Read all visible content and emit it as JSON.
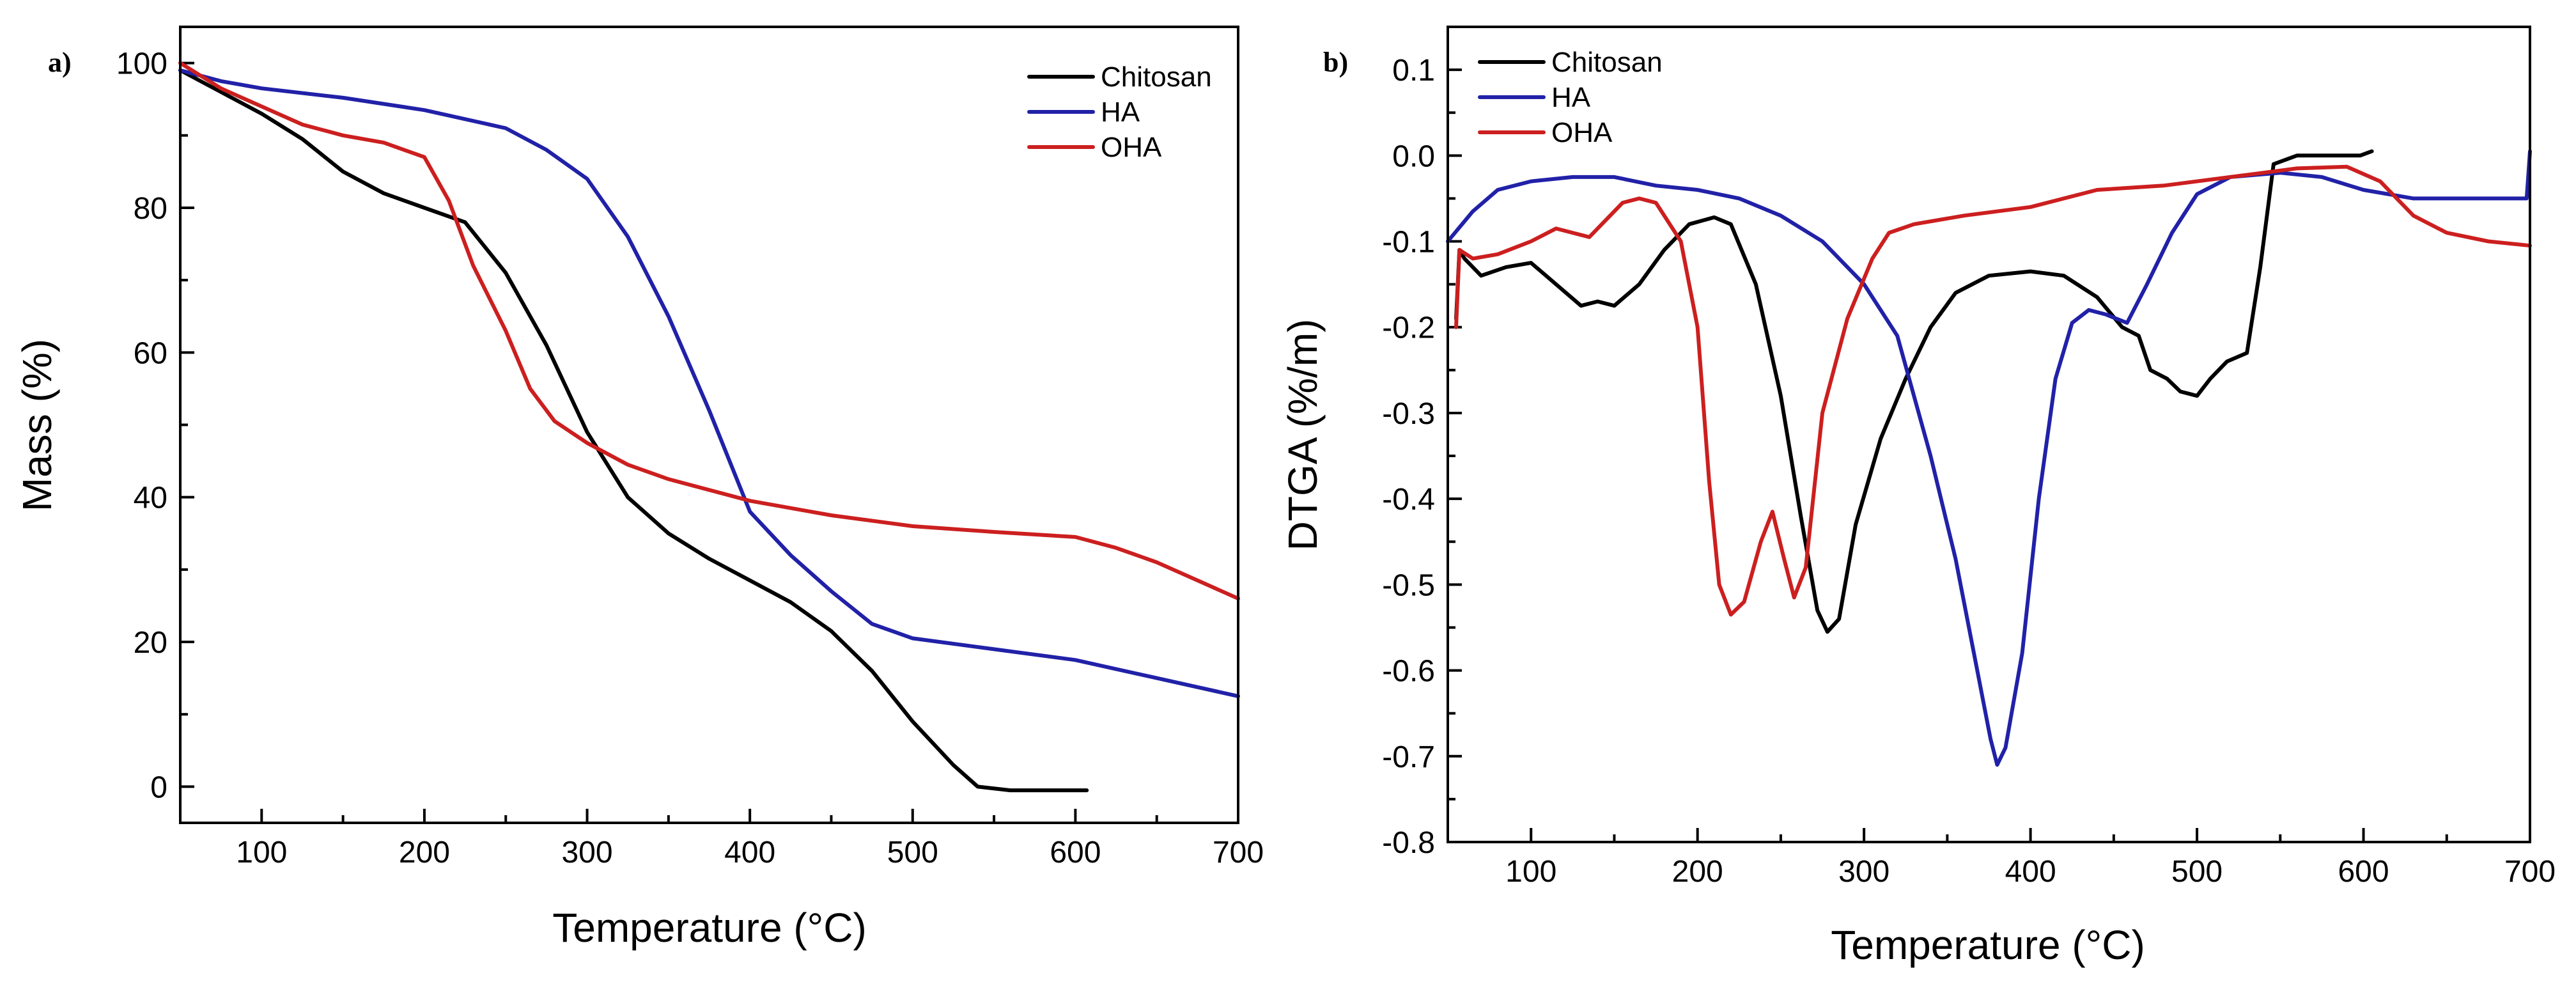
{
  "chart_data": [
    {
      "panel_label": "a)",
      "type": "line",
      "xlabel": "Temperature (°C)",
      "ylabel": "Mass (%)",
      "xlim": [
        50,
        700
      ],
      "ylim": [
        -5,
        105
      ],
      "xticks": [
        100,
        200,
        300,
        400,
        500,
        600,
        700
      ],
      "xtick_labels": [
        "100",
        "200",
        "300",
        "400",
        "500",
        "600",
        "700"
      ],
      "yticks": [
        0,
        20,
        40,
        60,
        80,
        100
      ],
      "ytick_labels": [
        "0",
        "20",
        "40",
        "60",
        "80",
        "100"
      ],
      "legend_position": "top-right",
      "series": [
        {
          "name": "Chitosan",
          "color": "#000000",
          "points": [
            [
              50,
              99
            ],
            [
              75,
              96
            ],
            [
              100,
              93
            ],
            [
              125,
              89.5
            ],
            [
              150,
              85
            ],
            [
              175,
              82
            ],
            [
              200,
              80
            ],
            [
              225,
              78
            ],
            [
              250,
              71
            ],
            [
              275,
              61
            ],
            [
              300,
              49
            ],
            [
              325,
              40
            ],
            [
              350,
              35
            ],
            [
              375,
              31.5
            ],
            [
              400,
              28.5
            ],
            [
              425,
              25.5
            ],
            [
              450,
              21.5
            ],
            [
              475,
              16
            ],
            [
              500,
              9
            ],
            [
              525,
              3
            ],
            [
              540,
              0
            ],
            [
              560,
              -0.5
            ],
            [
              580,
              -0.5
            ],
            [
              607,
              -0.5
            ]
          ]
        },
        {
          "name": "HA",
          "color": "#2121a8",
          "points": [
            [
              50,
              99
            ],
            [
              75,
              97.5
            ],
            [
              100,
              96.5
            ],
            [
              150,
              95.2
            ],
            [
              200,
              93.5
            ],
            [
              250,
              91
            ],
            [
              275,
              88
            ],
            [
              300,
              84
            ],
            [
              325,
              76
            ],
            [
              350,
              65
            ],
            [
              375,
              52
            ],
            [
              400,
              38
            ],
            [
              425,
              32
            ],
            [
              450,
              27
            ],
            [
              475,
              22.5
            ],
            [
              500,
              20.5
            ],
            [
              550,
              19
            ],
            [
              600,
              17.5
            ],
            [
              650,
              15
            ],
            [
              700,
              12.5
            ]
          ]
        },
        {
          "name": "OHA",
          "color": "#cc1f1f",
          "points": [
            [
              50,
              100
            ],
            [
              75,
              96.5
            ],
            [
              100,
              94
            ],
            [
              125,
              91.5
            ],
            [
              150,
              90
            ],
            [
              175,
              89
            ],
            [
              200,
              87
            ],
            [
              215,
              81
            ],
            [
              230,
              72
            ],
            [
              250,
              63
            ],
            [
              265,
              55
            ],
            [
              280,
              50.5
            ],
            [
              300,
              47.5
            ],
            [
              325,
              44.5
            ],
            [
              350,
              42.5
            ],
            [
              400,
              39.5
            ],
            [
              450,
              37.5
            ],
            [
              500,
              36
            ],
            [
              550,
              35.2
            ],
            [
              600,
              34.5
            ],
            [
              625,
              33
            ],
            [
              650,
              31
            ],
            [
              675,
              28.5
            ],
            [
              700,
              26
            ]
          ]
        }
      ]
    },
    {
      "panel_label": "b)",
      "type": "line",
      "xlabel": "Temperature (°C)",
      "ylabel": "DTGA (%/m)",
      "xlim": [
        50,
        700
      ],
      "ylim": [
        -0.8,
        0.15
      ],
      "xticks": [
        100,
        200,
        300,
        400,
        500,
        600,
        700
      ],
      "xtick_labels": [
        "100",
        "200",
        "300",
        "400",
        "500",
        "600",
        "700"
      ],
      "yticks": [
        -0.8,
        -0.7,
        -0.6,
        -0.5,
        -0.4,
        -0.3,
        -0.2,
        -0.1,
        0.0,
        0.1
      ],
      "ytick_labels": [
        "-0.8",
        "-0.7",
        "-0.6",
        "-0.5",
        "-0.4",
        "-0.3",
        "-0.2",
        "-0.1",
        "0.0",
        "0.1"
      ],
      "legend_position": "top-left",
      "series": [
        {
          "name": "Chitosan",
          "color": "#000000",
          "points": [
            [
              55,
              -0.19
            ],
            [
              57,
              -0.11
            ],
            [
              60,
              -0.12
            ],
            [
              70,
              -0.14
            ],
            [
              85,
              -0.13
            ],
            [
              100,
              -0.125
            ],
            [
              115,
              -0.15
            ],
            [
              130,
              -0.175
            ],
            [
              140,
              -0.17
            ],
            [
              150,
              -0.175
            ],
            [
              165,
              -0.15
            ],
            [
              180,
              -0.11
            ],
            [
              195,
              -0.08
            ],
            [
              210,
              -0.072
            ],
            [
              220,
              -0.08
            ],
            [
              235,
              -0.15
            ],
            [
              250,
              -0.28
            ],
            [
              262,
              -0.42
            ],
            [
              272,
              -0.53
            ],
            [
              278,
              -0.555
            ],
            [
              285,
              -0.54
            ],
            [
              295,
              -0.43
            ],
            [
              310,
              -0.33
            ],
            [
              325,
              -0.26
            ],
            [
              340,
              -0.2
            ],
            [
              355,
              -0.16
            ],
            [
              375,
              -0.14
            ],
            [
              400,
              -0.135
            ],
            [
              420,
              -0.14
            ],
            [
              440,
              -0.165
            ],
            [
              455,
              -0.2
            ],
            [
              465,
              -0.21
            ],
            [
              472,
              -0.25
            ],
            [
              482,
              -0.26
            ],
            [
              490,
              -0.275
            ],
            [
              500,
              -0.28
            ],
            [
              508,
              -0.26
            ],
            [
              518,
              -0.24
            ],
            [
              530,
              -0.23
            ],
            [
              538,
              -0.13
            ],
            [
              546,
              -0.01
            ],
            [
              560,
              0.0
            ],
            [
              585,
              0.0
            ],
            [
              598,
              0.0
            ],
            [
              605,
              0.005
            ]
          ]
        },
        {
          "name": "HA",
          "color": "#2121a8",
          "points": [
            [
              50,
              -0.1
            ],
            [
              65,
              -0.065
            ],
            [
              80,
              -0.04
            ],
            [
              100,
              -0.03
            ],
            [
              125,
              -0.025
            ],
            [
              150,
              -0.025
            ],
            [
              175,
              -0.035
            ],
            [
              200,
              -0.04
            ],
            [
              225,
              -0.05
            ],
            [
              250,
              -0.07
            ],
            [
              275,
              -0.1
            ],
            [
              300,
              -0.15
            ],
            [
              320,
              -0.21
            ],
            [
              340,
              -0.35
            ],
            [
              355,
              -0.47
            ],
            [
              368,
              -0.6
            ],
            [
              376,
              -0.68
            ],
            [
              380,
              -0.71
            ],
            [
              385,
              -0.69
            ],
            [
              395,
              -0.58
            ],
            [
              405,
              -0.4
            ],
            [
              415,
              -0.26
            ],
            [
              425,
              -0.195
            ],
            [
              435,
              -0.18
            ],
            [
              445,
              -0.185
            ],
            [
              458,
              -0.195
            ],
            [
              470,
              -0.15
            ],
            [
              485,
              -0.09
            ],
            [
              500,
              -0.045
            ],
            [
              520,
              -0.025
            ],
            [
              550,
              -0.02
            ],
            [
              575,
              -0.025
            ],
            [
              600,
              -0.04
            ],
            [
              630,
              -0.05
            ],
            [
              660,
              -0.05
            ],
            [
              690,
              -0.05
            ],
            [
              698,
              -0.05
            ],
            [
              700,
              0.005
            ]
          ]
        },
        {
          "name": "OHA",
          "color": "#cc1f1f",
          "points": [
            [
              55,
              -0.2
            ],
            [
              57,
              -0.11
            ],
            [
              65,
              -0.12
            ],
            [
              80,
              -0.115
            ],
            [
              100,
              -0.1
            ],
            [
              115,
              -0.085
            ],
            [
              125,
              -0.09
            ],
            [
              135,
              -0.095
            ],
            [
              145,
              -0.075
            ],
            [
              155,
              -0.055
            ],
            [
              165,
              -0.05
            ],
            [
              175,
              -0.055
            ],
            [
              190,
              -0.1
            ],
            [
              200,
              -0.2
            ],
            [
              207,
              -0.38
            ],
            [
              213,
              -0.5
            ],
            [
              220,
              -0.535
            ],
            [
              228,
              -0.52
            ],
            [
              238,
              -0.45
            ],
            [
              245,
              -0.415
            ],
            [
              252,
              -0.47
            ],
            [
              258,
              -0.515
            ],
            [
              265,
              -0.48
            ],
            [
              275,
              -0.3
            ],
            [
              290,
              -0.19
            ],
            [
              305,
              -0.12
            ],
            [
              315,
              -0.09
            ],
            [
              330,
              -0.08
            ],
            [
              360,
              -0.07
            ],
            [
              400,
              -0.06
            ],
            [
              440,
              -0.04
            ],
            [
              480,
              -0.035
            ],
            [
              520,
              -0.025
            ],
            [
              560,
              -0.015
            ],
            [
              590,
              -0.013
            ],
            [
              610,
              -0.03
            ],
            [
              630,
              -0.07
            ],
            [
              650,
              -0.09
            ],
            [
              675,
              -0.1
            ],
            [
              700,
              -0.105
            ]
          ]
        }
      ]
    }
  ]
}
